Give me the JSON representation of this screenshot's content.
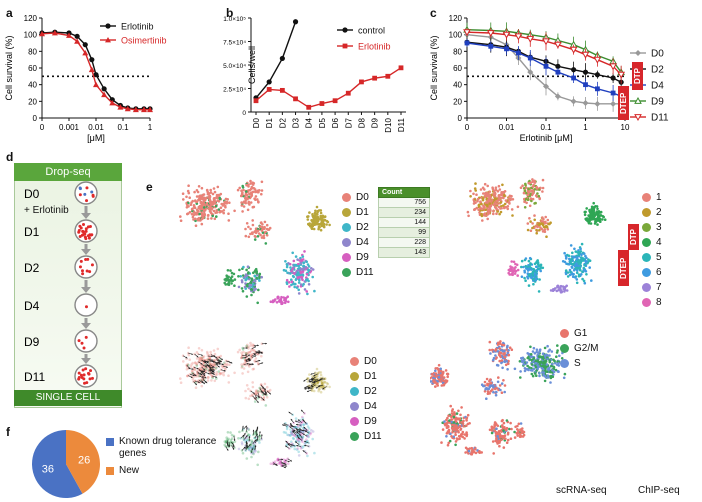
{
  "panel_labels": {
    "a": "a",
    "b": "b",
    "c": "c",
    "d": "d",
    "e": "e",
    "f": "f"
  },
  "colors": {
    "black": "#111111",
    "red": "#d62728",
    "gray": "#999999",
    "blue": "#1f3fbf",
    "green": "#3c8d2f",
    "salmon": "#e9877b",
    "dropseq_green": "#5aa63c",
    "d0": "#e88278",
    "d1": "#b8a63a",
    "d2": "#3fb6c8",
    "d4": "#8f86cc",
    "d9": "#d65fc0",
    "d11": "#3aa35a",
    "c1": "#e88278",
    "c2": "#c09a2c",
    "c3": "#7aa83a",
    "c4": "#2fa654",
    "c5": "#2bb5b8",
    "c6": "#3f9be0",
    "c7": "#9c82d8",
    "c8": "#e065b4",
    "g1": "#e8756c",
    "g2m": "#3aa35a",
    "s": "#6a8fd8",
    "pie_blue": "#4a72c4",
    "pie_orange": "#ec8a3c"
  },
  "chart_data": [
    {
      "id": "a",
      "type": "line",
      "title": "",
      "xlabel": "[μM]",
      "ylabel": "Cell survival (%)",
      "xscale": "log",
      "xlim": [
        0.0001,
        1
      ],
      "ylim": [
        0,
        120
      ],
      "x_ticks": [
        "0",
        "0.001",
        "0.01",
        "0.1",
        "1"
      ],
      "y_ticks": [
        "0",
        "20",
        "40",
        "60",
        "80",
        "100",
        "120"
      ],
      "reference_line": 50,
      "legend": [
        "Erlotinib",
        "Osimertinib"
      ],
      "series": [
        {
          "name": "Erlotinib",
          "color": "black",
          "x": [
            0.0001,
            0.0003,
            0.001,
            0.002,
            0.004,
            0.007,
            0.01,
            0.02,
            0.04,
            0.08,
            0.15,
            0.3,
            0.6,
            1
          ],
          "y": [
            102,
            103,
            102,
            98,
            88,
            70,
            52,
            35,
            22,
            15,
            12,
            11,
            11,
            11
          ]
        },
        {
          "name": "Osimertinib",
          "color": "red",
          "x": [
            0.0001,
            0.0003,
            0.001,
            0.002,
            0.004,
            0.007,
            0.01,
            0.02,
            0.04,
            0.08,
            0.15,
            0.3,
            0.6,
            1
          ],
          "y": [
            101,
            102,
            99,
            92,
            78,
            58,
            40,
            28,
            18,
            13,
            11,
            10,
            10,
            10
          ]
        }
      ]
    },
    {
      "id": "b",
      "type": "line",
      "title": "",
      "xlabel": "",
      "ylabel": "Cells/well",
      "ylim": [
        0,
        100000
      ],
      "y_ticks": [
        "0",
        "2.5×10⁴",
        "5.0×10⁴",
        "7.5×10⁴",
        "1.0×10⁵"
      ],
      "categories": [
        "D0",
        "D1",
        "D2",
        "D3",
        "D4",
        "D5",
        "D6",
        "D7",
        "D8",
        "D9",
        "D10",
        "D11"
      ],
      "legend": [
        "control",
        "Erlotinib"
      ],
      "series": [
        {
          "name": "control",
          "color": "black",
          "values": [
            15000,
            32000,
            57000,
            96000,
            null,
            null,
            null,
            null,
            null,
            null,
            null,
            null
          ]
        },
        {
          "name": "Erlotinib",
          "color": "red",
          "values": [
            12000,
            24000,
            23000,
            14000,
            5000,
            9000,
            12000,
            20000,
            32000,
            36000,
            38000,
            47000
          ]
        }
      ]
    },
    {
      "id": "c",
      "type": "line",
      "title": "",
      "xlabel": "Erlotinib [μM]",
      "ylabel": "Cell survival (%)",
      "xscale": "log",
      "xlim": [
        0.001,
        10
      ],
      "ylim": [
        0,
        120
      ],
      "x_ticks": [
        "0",
        "0.01",
        "0.1",
        "1",
        "10"
      ],
      "y_ticks": [
        "0",
        "20",
        "40",
        "60",
        "80",
        "100",
        "120"
      ],
      "reference_line": 50,
      "legend": [
        "D0",
        "D2",
        "D4",
        "D9",
        "D11"
      ],
      "tags": [
        "DTP",
        "DTEP"
      ],
      "series": [
        {
          "name": "D0",
          "color": "gray",
          "x": [
            0.001,
            0.004,
            0.01,
            0.02,
            0.04,
            0.1,
            0.2,
            0.5,
            1,
            2,
            5,
            8
          ],
          "y": [
            100,
            97,
            88,
            72,
            55,
            38,
            26,
            20,
            18,
            17,
            17,
            17
          ]
        },
        {
          "name": "D2",
          "color": "black",
          "x": [
            0.001,
            0.004,
            0.01,
            0.02,
            0.04,
            0.1,
            0.2,
            0.5,
            1,
            2,
            5,
            8
          ],
          "y": [
            91,
            88,
            85,
            80,
            73,
            68,
            62,
            58,
            55,
            52,
            48,
            43
          ]
        },
        {
          "name": "D4",
          "color": "blue",
          "x": [
            0.001,
            0.004,
            0.01,
            0.02,
            0.04,
            0.1,
            0.2,
            0.5,
            1,
            2,
            5,
            8
          ],
          "y": [
            90,
            86,
            83,
            78,
            72,
            62,
            55,
            48,
            40,
            35,
            30,
            26
          ]
        },
        {
          "name": "D9",
          "color": "green",
          "x": [
            0.001,
            0.004,
            0.01,
            0.02,
            0.04,
            0.1,
            0.2,
            0.5,
            1,
            2,
            5,
            8
          ],
          "y": [
            106,
            105,
            104,
            102,
            100,
            97,
            93,
            88,
            82,
            75,
            68,
            55
          ]
        },
        {
          "name": "D11",
          "color": "red",
          "x": [
            0.001,
            0.004,
            0.01,
            0.02,
            0.04,
            0.1,
            0.2,
            0.5,
            1,
            2,
            5,
            8
          ],
          "y": [
            103,
            102,
            100,
            98,
            95,
            92,
            88,
            82,
            76,
            70,
            62,
            52
          ]
        }
      ]
    },
    {
      "id": "f",
      "type": "pie",
      "title": "",
      "slices": [
        {
          "label": "Known drug tolerance genes",
          "value": 36,
          "color": "pie_blue"
        },
        {
          "label": "New",
          "value": 26,
          "color": "pie_orange"
        }
      ]
    }
  ],
  "panel_d": {
    "header": "Drop-seq",
    "treatment": "+ Erlotinib",
    "timepoints": [
      "D0",
      "D1",
      "D2",
      "D4",
      "D9",
      "D11"
    ],
    "footer": "SINGLE CELL"
  },
  "panel_e": {
    "day_legend": [
      "D0",
      "D1",
      "D2",
      "D4",
      "D9",
      "D11"
    ],
    "count_table": {
      "header": "Count",
      "values": [
        "756",
        "234",
        "144",
        "99",
        "228",
        "143"
      ]
    },
    "cluster_legend": [
      "1",
      "2",
      "3",
      "4",
      "5",
      "6",
      "7",
      "8"
    ],
    "cluster_tags": [
      "DTP",
      "DTEP"
    ],
    "velocity_legend": [
      "D0",
      "D1",
      "D2",
      "D4",
      "D9",
      "D11"
    ],
    "phase_legend": [
      "G1",
      "G2/M",
      "S"
    ]
  },
  "footer_cut": {
    "left": "scRNA-seq",
    "right": "ChIP-seq"
  }
}
